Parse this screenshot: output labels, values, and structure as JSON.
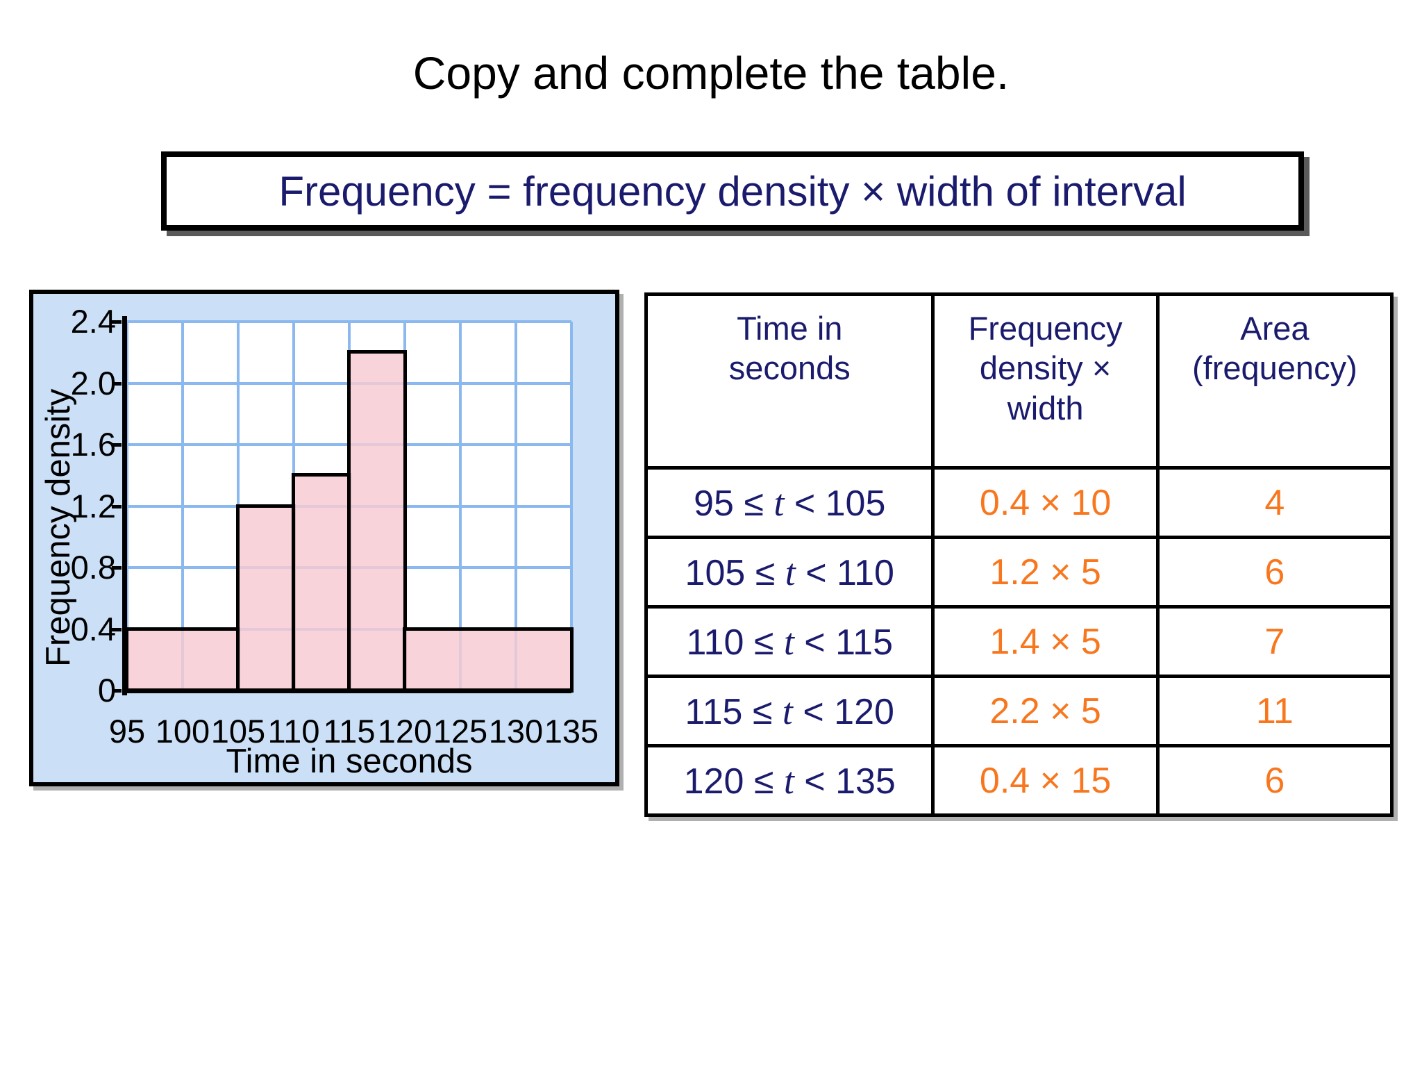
{
  "slide": {
    "title": "Copy and complete the table.",
    "formula": "Frequency = frequency density × width of interval"
  },
  "colors": {
    "navy_text": "#1b1b6e",
    "orange_text": "#f8771e",
    "chart_panel_bg": "#cbe0f7",
    "grid_blue": "#8ab8ef",
    "bar_pink": "#f9d2da",
    "outline_black": "#000000"
  },
  "chart_data": {
    "type": "bar",
    "subtype": "histogram",
    "title": "",
    "xlabel": "Time in seconds",
    "ylabel": "Frequency density",
    "x_ticks": [
      95,
      100,
      105,
      110,
      115,
      120,
      125,
      130,
      135
    ],
    "y_ticks": [
      "2.4",
      "2.0",
      "1.6",
      "1.2",
      "0.8",
      "0.4",
      "0"
    ],
    "xlim": [
      95,
      135
    ],
    "ylim": [
      0,
      2.4
    ],
    "grid": true,
    "legend": false,
    "bars": [
      {
        "from": 95,
        "to": 105,
        "frequency_density": 0.4
      },
      {
        "from": 105,
        "to": 110,
        "frequency_density": 1.2
      },
      {
        "from": 110,
        "to": 115,
        "frequency_density": 1.4
      },
      {
        "from": 115,
        "to": 120,
        "frequency_density": 2.2
      },
      {
        "from": 120,
        "to": 135,
        "frequency_density": 0.4
      }
    ]
  },
  "table": {
    "headers": [
      "Time in\nseconds",
      "Frequency\ndensity ×\nwidth",
      "Area\n(frequency)"
    ],
    "rows": [
      {
        "interval_pre": "95 ≤ ",
        "interval_var": "t",
        "interval_post": " < 105",
        "calc": "0.4 × 10",
        "area": "4"
      },
      {
        "interval_pre": "105 ≤ ",
        "interval_var": "t",
        "interval_post": " < 110",
        "calc": "1.2 × 5",
        "area": "6"
      },
      {
        "interval_pre": "110 ≤ ",
        "interval_var": "t",
        "interval_post": " < 115",
        "calc": "1.4 × 5",
        "area": "7"
      },
      {
        "interval_pre": "115 ≤ ",
        "interval_var": "t",
        "interval_post": " < 120",
        "calc": "2.2 × 5",
        "area": "11"
      },
      {
        "interval_pre": "120 ≤ ",
        "interval_var": "t",
        "interval_post": " < 135",
        "calc": "0.4 × 15",
        "area": "6"
      }
    ]
  }
}
